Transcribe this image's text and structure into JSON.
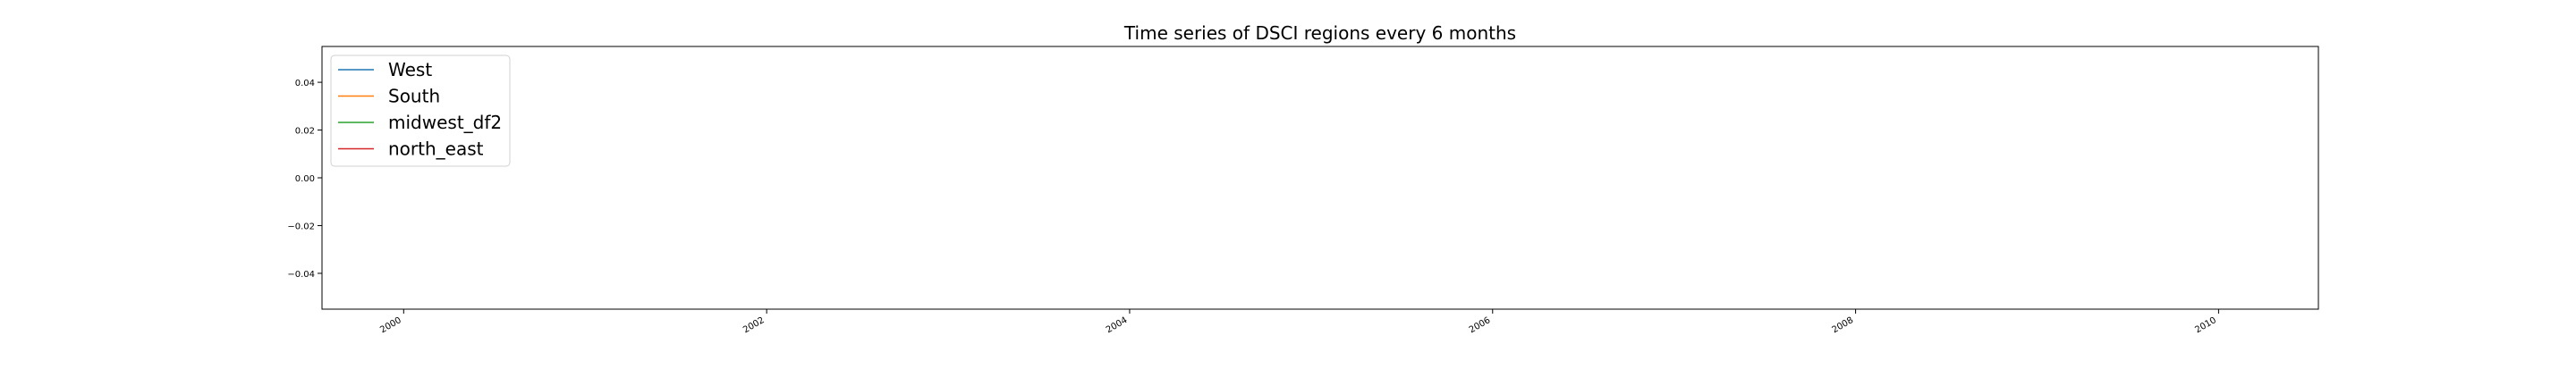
{
  "chart_data": {
    "type": "line",
    "title": "Time series of DSCI regions every 6 months",
    "xlabel": "",
    "ylabel": "",
    "xlim": [
      1999.55,
      2010.55
    ],
    "ylim": [
      -0.055,
      0.055
    ],
    "x_ticks": [
      {
        "value": 2000,
        "label": "2000"
      },
      {
        "value": 2002,
        "label": "2002"
      },
      {
        "value": 2004,
        "label": "2004"
      },
      {
        "value": 2006,
        "label": "2006"
      },
      {
        "value": 2008,
        "label": "2008"
      },
      {
        "value": 2010,
        "label": "2010"
      }
    ],
    "y_ticks": [
      {
        "value": 0.04,
        "label": "0.04"
      },
      {
        "value": 0.02,
        "label": "0.02"
      },
      {
        "value": 0.0,
        "label": "0.00"
      },
      {
        "value": -0.02,
        "label": "−0.02"
      },
      {
        "value": -0.04,
        "label": "−0.04"
      }
    ],
    "grid": false,
    "legend_position": "top-left",
    "series": [
      {
        "name": "West",
        "color": "#1f77b4",
        "x": [],
        "values": []
      },
      {
        "name": "South",
        "color": "#ff7f0e",
        "x": [],
        "values": []
      },
      {
        "name": "midwest_df2",
        "color": "#2ca02c",
        "x": [],
        "values": []
      },
      {
        "name": "north_east",
        "color": "#d62728",
        "x": [],
        "values": []
      }
    ]
  }
}
